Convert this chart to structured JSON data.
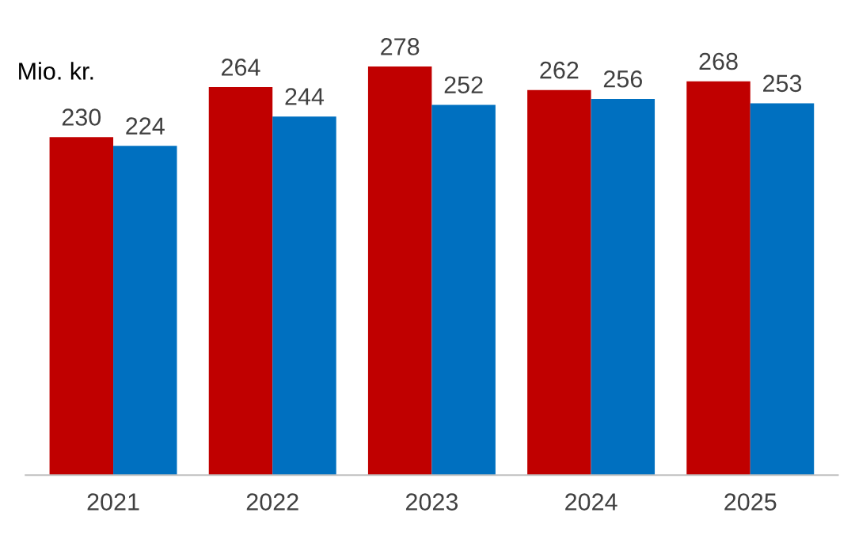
{
  "chart_data": {
    "type": "bar",
    "ylabel": "Mio. kr.",
    "categories": [
      "2021",
      "2022",
      "2023",
      "2024",
      "2025"
    ],
    "series": [
      {
        "color": "#c00000",
        "values": [
          230,
          264,
          278,
          262,
          268
        ]
      },
      {
        "color": "#0070c0",
        "values": [
          224,
          244,
          252,
          256,
          253
        ]
      }
    ],
    "data_labels": true,
    "grid": false,
    "legend": false
  }
}
